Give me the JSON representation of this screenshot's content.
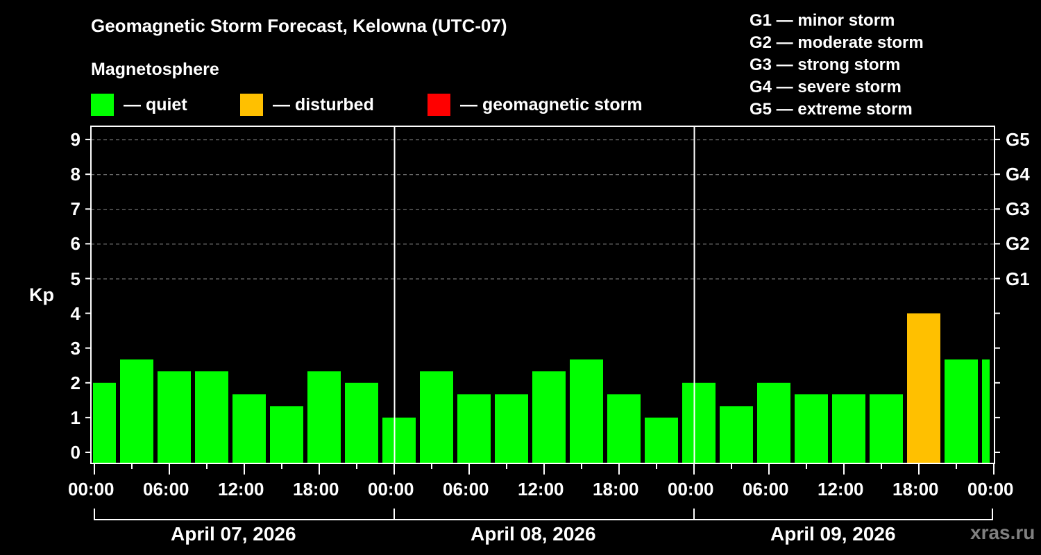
{
  "header": {
    "title": "Geomagnetic Storm Forecast, Kelowna (UTC-07)",
    "subtitle": "Magnetosphere"
  },
  "legend": [
    {
      "label": "— quiet",
      "color": "#00ff00"
    },
    {
      "label": "— disturbed",
      "color": "#ffc000"
    },
    {
      "label": "— geomagnetic storm",
      "color": "#ff0000"
    }
  ],
  "g_scale_legend": [
    "G1 — minor storm",
    "G2 — moderate storm",
    "G3 — strong storm",
    "G4 — severe storm",
    "G5 — extreme storm"
  ],
  "axes": {
    "y_label": "Kp",
    "y_ticks": [
      "0",
      "1",
      "2",
      "3",
      "4",
      "5",
      "6",
      "7",
      "8",
      "9"
    ],
    "g_ticks": [
      {
        "kp": 5,
        "label": "G1"
      },
      {
        "kp": 6,
        "label": "G2"
      },
      {
        "kp": 7,
        "label": "G3"
      },
      {
        "kp": 8,
        "label": "G4"
      },
      {
        "kp": 9,
        "label": "G5"
      }
    ],
    "x_ticks": [
      "00:00",
      "06:00",
      "12:00",
      "18:00",
      "00:00",
      "06:00",
      "12:00",
      "18:00",
      "00:00",
      "06:00",
      "12:00",
      "18:00",
      "00:00"
    ],
    "dates": [
      "April 07, 2026",
      "April 08, 2026",
      "April 09, 2026"
    ]
  },
  "watermark": "xras.ru",
  "chart_data": {
    "type": "bar",
    "title": "Geomagnetic Storm Forecast, Kelowna (UTC-07)",
    "xlabel": "",
    "ylabel": "Kp",
    "ylim": [
      0,
      9
    ],
    "grid": "dashed horizontal at Kp 5–9",
    "legend_position": "top",
    "interval_hours": 3,
    "start_offset_hours": -1,
    "categories": [
      "Apr 07 00:00",
      "Apr 07 03:00",
      "Apr 07 06:00",
      "Apr 07 09:00",
      "Apr 07 12:00",
      "Apr 07 15:00",
      "Apr 07 18:00",
      "Apr 07 21:00",
      "Apr 08 00:00",
      "Apr 08 03:00",
      "Apr 08 06:00",
      "Apr 08 09:00",
      "Apr 08 12:00",
      "Apr 08 15:00",
      "Apr 08 18:00",
      "Apr 08 21:00",
      "Apr 09 00:00",
      "Apr 09 03:00",
      "Apr 09 06:00",
      "Apr 09 09:00",
      "Apr 09 12:00",
      "Apr 09 15:00",
      "Apr 09 18:00",
      "Apr 09 21:00",
      "Apr 10 00:00"
    ],
    "values": [
      2.0,
      2.67,
      2.33,
      2.33,
      1.67,
      1.33,
      2.33,
      2.0,
      1.0,
      2.33,
      1.67,
      1.67,
      2.33,
      2.67,
      1.67,
      1.0,
      2.0,
      1.33,
      2.0,
      1.67,
      1.67,
      1.67,
      4.0,
      2.67,
      2.67
    ],
    "status": [
      "quiet",
      "quiet",
      "quiet",
      "quiet",
      "quiet",
      "quiet",
      "quiet",
      "quiet",
      "quiet",
      "quiet",
      "quiet",
      "quiet",
      "quiet",
      "quiet",
      "quiet",
      "quiet",
      "quiet",
      "quiet",
      "quiet",
      "quiet",
      "quiet",
      "quiet",
      "disturbed",
      "quiet",
      "quiet"
    ],
    "colors": {
      "quiet": "#00ff00",
      "disturbed": "#ffc000",
      "storm": "#ff0000"
    }
  }
}
